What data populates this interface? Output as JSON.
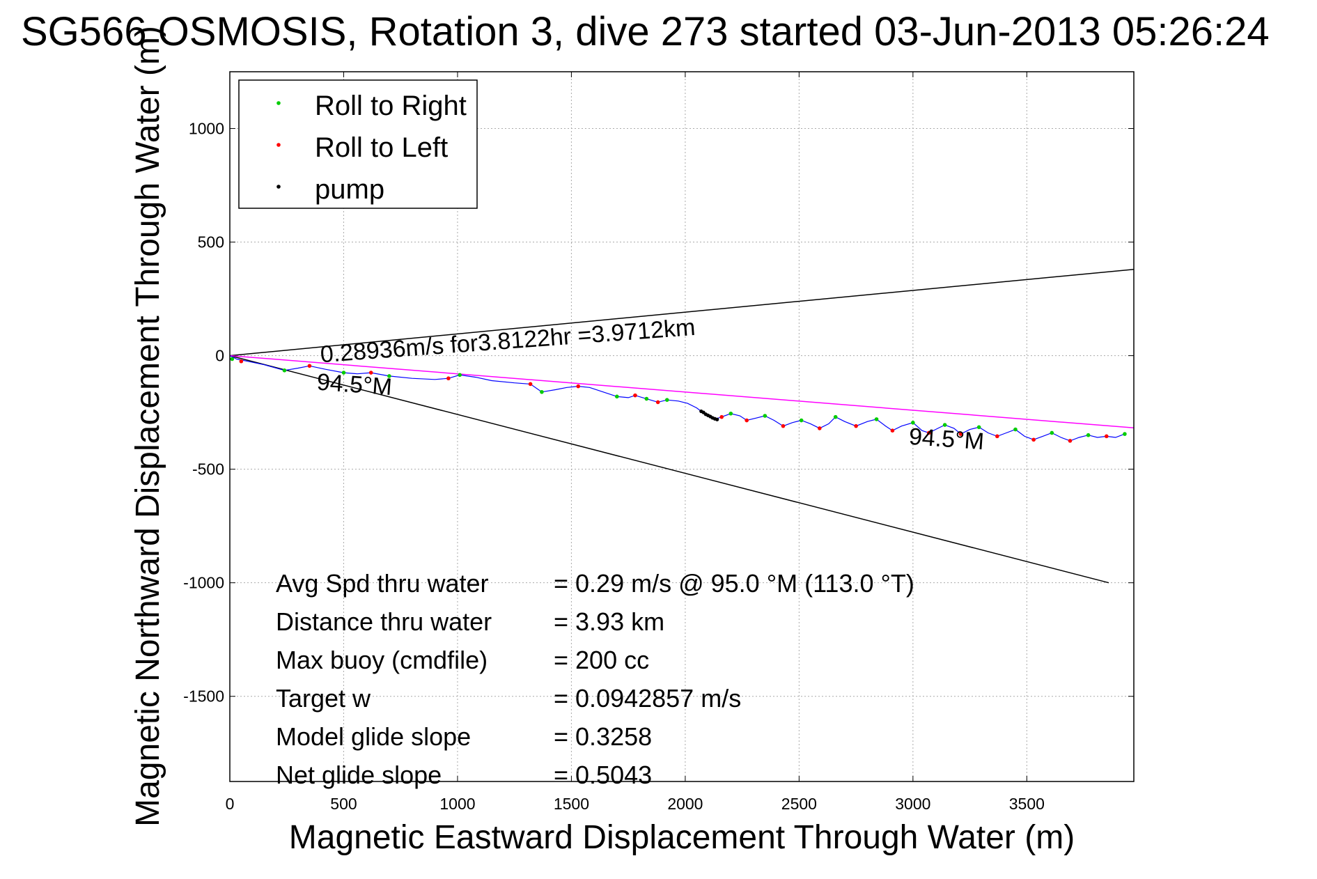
{
  "chart_data": {
    "type": "scatter",
    "title": "SG566 OSMOSIS, Rotation 3, dive 273 started 03-Jun-2013 05:26:24",
    "xlabel": "Magnetic Eastward Displacement Through Water (m)",
    "ylabel": "Magnetic Northward Displacement Through Water (m)",
    "xlim": [
      0,
      3970
    ],
    "ylim": [
      -1875,
      1250
    ],
    "xticks": [
      0,
      500,
      1000,
      1500,
      2000,
      2500,
      3000,
      3500
    ],
    "yticks": [
      -1500,
      -1000,
      -500,
      0,
      500,
      1000
    ],
    "xtick_labels": [
      "0",
      "500",
      "1000",
      "1500",
      "2000",
      "2500",
      "3000",
      "3500"
    ],
    "ytick_labels": [
      "-1500",
      "-1000",
      "-500",
      "0",
      "500",
      "1000"
    ],
    "grid": true,
    "legend_position": "top-left",
    "legend": [
      {
        "label": "Roll to Right",
        "color": "#00cc00"
      },
      {
        "label": "Roll to Left",
        "color": "#ff0000"
      },
      {
        "label": "pump",
        "color": "#000000"
      }
    ],
    "track": {
      "color": "#0000ff",
      "points": [
        [
          0,
          0
        ],
        [
          30,
          -15
        ],
        [
          80,
          -25
        ],
        [
          150,
          -40
        ],
        [
          240,
          -65
        ],
        [
          300,
          -55
        ],
        [
          350,
          -45
        ],
        [
          420,
          -60
        ],
        [
          500,
          -75
        ],
        [
          560,
          -80
        ],
        [
          620,
          -75
        ],
        [
          700,
          -90
        ],
        [
          800,
          -100
        ],
        [
          900,
          -105
        ],
        [
          960,
          -100
        ],
        [
          1010,
          -85
        ],
        [
          1080,
          -95
        ],
        [
          1150,
          -110
        ],
        [
          1250,
          -120
        ],
        [
          1320,
          -125
        ],
        [
          1370,
          -160
        ],
        [
          1430,
          -150
        ],
        [
          1480,
          -140
        ],
        [
          1530,
          -135
        ],
        [
          1580,
          -140
        ],
        [
          1640,
          -160
        ],
        [
          1700,
          -180
        ],
        [
          1750,
          -185
        ],
        [
          1780,
          -175
        ],
        [
          1830,
          -190
        ],
        [
          1880,
          -205
        ],
        [
          1920,
          -195
        ],
        [
          1970,
          -200
        ],
        [
          2010,
          -210
        ],
        [
          2050,
          -230
        ],
        [
          2090,
          -260
        ],
        [
          2130,
          -280
        ],
        [
          2160,
          -270
        ],
        [
          2200,
          -255
        ],
        [
          2240,
          -265
        ],
        [
          2270,
          -285
        ],
        [
          2310,
          -275
        ],
        [
          2350,
          -265
        ],
        [
          2390,
          -285
        ],
        [
          2430,
          -310
        ],
        [
          2470,
          -295
        ],
        [
          2510,
          -285
        ],
        [
          2550,
          -300
        ],
        [
          2590,
          -320
        ],
        [
          2630,
          -300
        ],
        [
          2660,
          -270
        ],
        [
          2700,
          -290
        ],
        [
          2750,
          -310
        ],
        [
          2800,
          -290
        ],
        [
          2840,
          -280
        ],
        [
          2880,
          -310
        ],
        [
          2910,
          -330
        ],
        [
          2950,
          -310
        ],
        [
          3000,
          -295
        ],
        [
          3040,
          -330
        ],
        [
          3070,
          -340
        ],
        [
          3110,
          -320
        ],
        [
          3140,
          -305
        ],
        [
          3180,
          -320
        ],
        [
          3210,
          -345
        ],
        [
          3250,
          -325
        ],
        [
          3290,
          -315
        ],
        [
          3330,
          -340
        ],
        [
          3370,
          -355
        ],
        [
          3410,
          -340
        ],
        [
          3450,
          -325
        ],
        [
          3490,
          -355
        ],
        [
          3530,
          -370
        ],
        [
          3570,
          -355
        ],
        [
          3610,
          -340
        ],
        [
          3650,
          -360
        ],
        [
          3690,
          -375
        ],
        [
          3730,
          -360
        ],
        [
          3770,
          -350
        ],
        [
          3810,
          -360
        ],
        [
          3850,
          -355
        ],
        [
          3890,
          -360
        ],
        [
          3930,
          -345
        ]
      ]
    },
    "roll_right_points": [
      [
        10,
        -15
      ],
      [
        240,
        -65
      ],
      [
        500,
        -75
      ],
      [
        700,
        -90
      ],
      [
        1010,
        -85
      ],
      [
        1370,
        -160
      ],
      [
        1700,
        -180
      ],
      [
        1830,
        -190
      ],
      [
        1920,
        -195
      ],
      [
        2200,
        -255
      ],
      [
        2350,
        -265
      ],
      [
        2510,
        -285
      ],
      [
        2660,
        -270
      ],
      [
        2840,
        -280
      ],
      [
        3000,
        -295
      ],
      [
        3140,
        -305
      ],
      [
        3290,
        -315
      ],
      [
        3450,
        -325
      ],
      [
        3610,
        -340
      ],
      [
        3770,
        -350
      ],
      [
        3930,
        -345
      ]
    ],
    "roll_left_points": [
      [
        50,
        -25
      ],
      [
        350,
        -45
      ],
      [
        620,
        -75
      ],
      [
        960,
        -100
      ],
      [
        1320,
        -125
      ],
      [
        1530,
        -135
      ],
      [
        1780,
        -175
      ],
      [
        1880,
        -205
      ],
      [
        2160,
        -270
      ],
      [
        2270,
        -285
      ],
      [
        2430,
        -310
      ],
      [
        2590,
        -320
      ],
      [
        2750,
        -310
      ],
      [
        2910,
        -330
      ],
      [
        3070,
        -340
      ],
      [
        3210,
        -345
      ],
      [
        3370,
        -355
      ],
      [
        3530,
        -370
      ],
      [
        3690,
        -375
      ],
      [
        3850,
        -355
      ]
    ],
    "pump_points": [
      [
        2070,
        -245
      ],
      [
        2080,
        -250
      ],
      [
        2090,
        -258
      ],
      [
        2100,
        -263
      ],
      [
        2110,
        -268
      ],
      [
        2120,
        -274
      ],
      [
        2130,
        -278
      ],
      [
        2140,
        -281
      ]
    ],
    "reference_lines": [
      {
        "name": "bearing-upper",
        "color": "#000000",
        "x": [
          0,
          3970
        ],
        "y": [
          0,
          380
        ]
      },
      {
        "name": "bearing-lower",
        "color": "#000000",
        "x": [
          0,
          3860
        ],
        "y": [
          0,
          -1000
        ]
      },
      {
        "name": "net-heading",
        "color": "#ff00ff",
        "x": [
          0,
          3970
        ],
        "y": [
          0,
          -318
        ]
      }
    ],
    "annotations": [
      {
        "text": "0.28936m/s for3.8122hr =3.9712km",
        "x": 400,
        "y": -30,
        "rotate": -4.2
      },
      {
        "text": "94.5°M",
        "x": 380,
        "y": -150,
        "rotate": 4
      },
      {
        "text": "94.5°M",
        "x": 2980,
        "y": -390,
        "rotate": 4
      }
    ],
    "stats": [
      {
        "label": "Avg Spd thru water",
        "value": "=  0.29 m/s @  95.0 °M (113.0 °T)"
      },
      {
        "label": "Distance thru water",
        "value": "=  3.93 km"
      },
      {
        "label": "Max buoy (cmdfile)",
        "value": "= 200 cc"
      },
      {
        "label": "Target w",
        "value": "= 0.0942857 m/s"
      },
      {
        "label": "Model glide slope",
        "value": "= 0.3258"
      },
      {
        "label": "Net glide slope",
        "value": "= 0.5043"
      }
    ]
  }
}
